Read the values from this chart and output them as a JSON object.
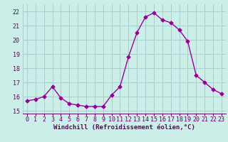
{
  "x": [
    0,
    1,
    2,
    3,
    4,
    5,
    6,
    7,
    8,
    9,
    10,
    11,
    12,
    13,
    14,
    15,
    16,
    17,
    18,
    19,
    20,
    21,
    22,
    23
  ],
  "y": [
    15.7,
    15.8,
    16.0,
    16.7,
    15.9,
    15.5,
    15.4,
    15.3,
    15.3,
    15.3,
    16.1,
    16.7,
    18.8,
    20.5,
    21.6,
    21.9,
    21.4,
    21.2,
    20.7,
    19.9,
    17.5,
    17.0,
    16.5,
    16.2
  ],
  "line_color": "#990099",
  "marker": "D",
  "marker_size": 2.5,
  "bg_color": "#cceee8",
  "grid_color": "#aacccc",
  "xlabel": "Windchill (Refroidissement éolien,°C)",
  "ylabel_ticks": [
    15,
    16,
    17,
    18,
    19,
    20,
    21,
    22
  ],
  "ylim": [
    14.8,
    22.5
  ],
  "xlim": [
    -0.5,
    23.5
  ],
  "xlabel_color": "#660066",
  "tick_color": "#660066",
  "xlabel_fontsize": 6.5,
  "tick_fontsize": 6.0
}
